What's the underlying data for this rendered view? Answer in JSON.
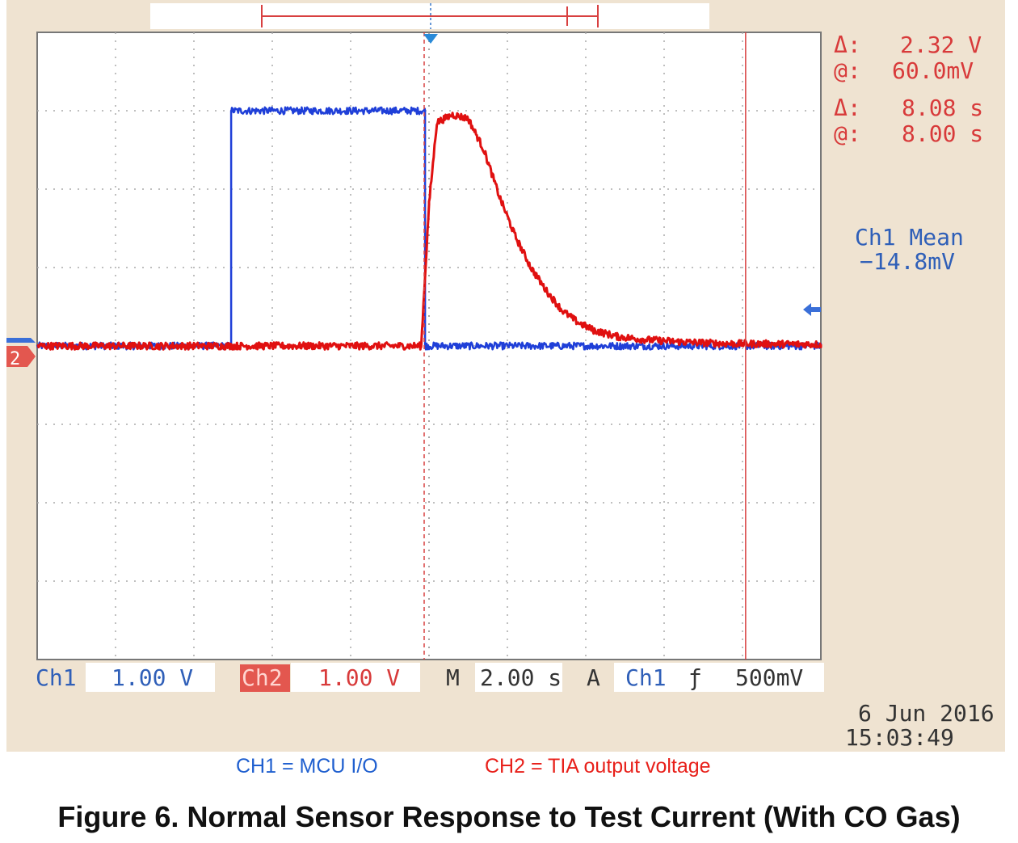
{
  "figure": {
    "caption": "Figure 6. Normal Sensor Response to Test Current (With CO Gas)",
    "legend_ch1": "CH1 = MCU I/O",
    "legend_ch2": "CH2 = TIA output voltage"
  },
  "scope": {
    "cursor_readouts": {
      "voltage_delta_label": "Δ:",
      "voltage_delta": "2.32 V",
      "voltage_at_label": "@:",
      "voltage_at": "60.0mV",
      "time_delta_label": "Δ:",
      "time_delta": "8.08 s",
      "time_at_label": "@:",
      "time_at": "8.00 s"
    },
    "measurement": {
      "name": "Ch1 Mean",
      "value": "−14.8mV"
    },
    "ch1_label": "Ch1",
    "ch1_scale": "1.00 V",
    "ch2_label": "Ch2",
    "ch2_scale": "1.00 V",
    "timebase_label": "M",
    "timebase": "2.00 s",
    "trigger_label": "A",
    "trigger_source": "Ch1",
    "trigger_slope": "ƒ",
    "trigger_level": "500mV",
    "date": "6 Jun  2016",
    "time": "15:03:49",
    "ch2_marker": "2",
    "colors": {
      "ch1": "#1f3fd8",
      "ch2": "#e01010",
      "cursor": "#d84040",
      "background": "#efe3d1"
    }
  },
  "chart_data": {
    "type": "line",
    "x_units": "s",
    "y_units": "V",
    "xlim": [
      -10,
      10
    ],
    "ylim": [
      -4,
      4
    ],
    "grid": true,
    "x_divisions": 10,
    "y_divisions": 8,
    "trigger_time": 0,
    "series": [
      {
        "name": "CH1 = MCU I/O",
        "color": "#1f3fd8",
        "x": [
          -10,
          -5.05,
          -5.05,
          -0.1,
          -0.1,
          10
        ],
        "y": [
          0,
          0,
          3.0,
          3.0,
          0,
          0
        ]
      },
      {
        "name": "CH2 = TIA output voltage",
        "color": "#e01010",
        "x": [
          -10,
          -0.2,
          0.0,
          0.2,
          0.6,
          1.0,
          1.4,
          1.8,
          2.2,
          2.6,
          3.0,
          3.4,
          3.8,
          4.2,
          4.8,
          5.5,
          6.5,
          7.5,
          10
        ],
        "y": [
          0,
          0,
          1.8,
          2.85,
          2.95,
          2.9,
          2.5,
          1.9,
          1.4,
          1.0,
          0.7,
          0.45,
          0.3,
          0.2,
          0.12,
          0.08,
          0.05,
          0.03,
          0.02
        ]
      }
    ],
    "cursors": {
      "vertical_x": [
        0,
        8.08
      ]
    }
  }
}
